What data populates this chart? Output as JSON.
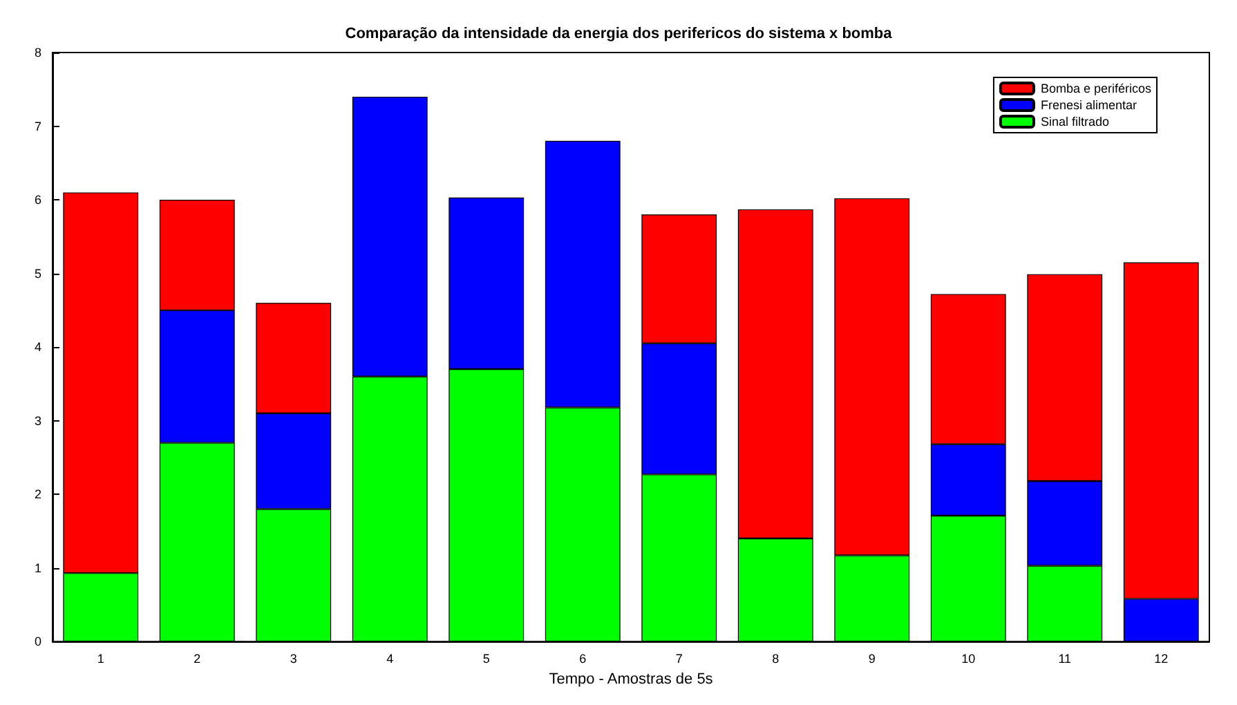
{
  "chart_data": {
    "type": "bar",
    "title": "Comparação da intensidade da energia dos perifericos do sistema x bomba",
    "xlabel": "Tempo - Amostras de 5s",
    "categories": [
      "1",
      "2",
      "3",
      "4",
      "5",
      "6",
      "7",
      "8",
      "9",
      "10",
      "11",
      "12"
    ],
    "stacked": true,
    "ylim": [
      0,
      8
    ],
    "yticks": [
      0,
      1,
      2,
      3,
      4,
      5,
      6,
      7,
      8
    ],
    "grid": false,
    "legend": "top right",
    "series": [
      {
        "name": "Sinal filtrado",
        "color": "#00ff00",
        "values": [
          0.93,
          2.7,
          1.8,
          3.6,
          3.7,
          3.18,
          2.27,
          1.4,
          1.17,
          1.71,
          1.03,
          null
        ]
      },
      {
        "name": "Frenesi alimentar",
        "color": "#0000ff",
        "values": [
          null,
          1.8,
          1.3,
          3.8,
          2.33,
          3.62,
          1.78,
          null,
          null,
          0.97,
          1.15,
          0.58
        ]
      },
      {
        "name": "Bomba e periféricos",
        "color": "#ff0000",
        "values": [
          5.17,
          1.5,
          1.5,
          null,
          null,
          null,
          1.75,
          4.47,
          4.85,
          2.04,
          2.81,
          4.57
        ]
      }
    ]
  }
}
